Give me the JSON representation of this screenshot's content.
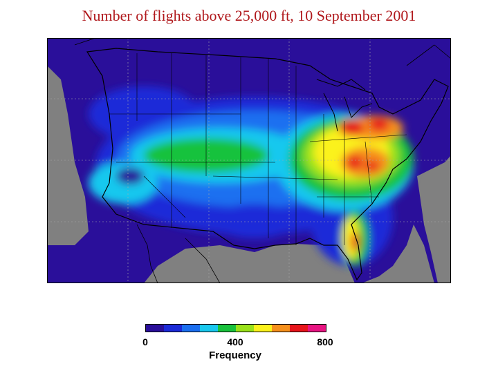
{
  "title": "Number of flights above 25,000 ft, 10 September 2001",
  "legend": {
    "label": "Frequency",
    "ticks": [
      "0",
      "400",
      "800"
    ],
    "colors": [
      "#2a0f9a",
      "#1c2bd8",
      "#1b6ff0",
      "#19c8ee",
      "#19c23c",
      "#9ae21a",
      "#fbf21c",
      "#f6901c",
      "#e8151b",
      "#e81482"
    ]
  },
  "map": {
    "background": "#808080",
    "base_color": "#2a0f9a"
  }
}
